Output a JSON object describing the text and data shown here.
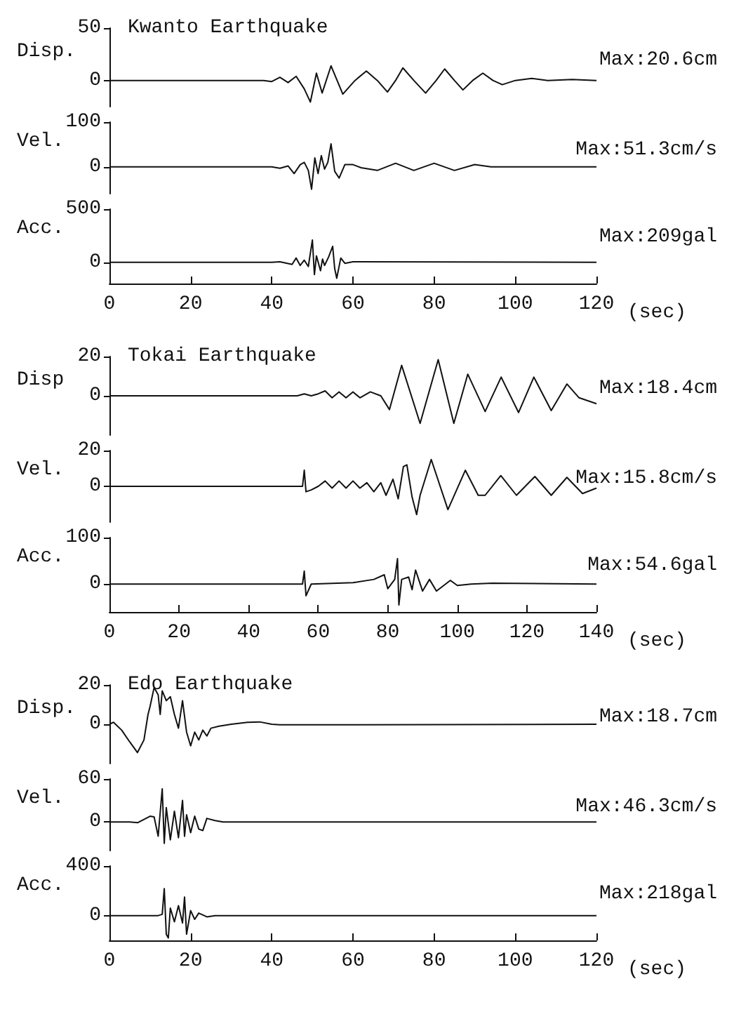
{
  "chart_data": [
    {
      "type": "line",
      "title": "Kwanto Earthquake",
      "ylabel": "Disp.",
      "annotations": [
        "Max:20.6cm"
      ],
      "tick_labels": "y",
      "xlim": [
        0,
        120
      ],
      "ylim": [
        -25,
        50
      ],
      "yticks": [
        0,
        50
      ],
      "x": [
        0,
        38,
        40,
        42,
        44,
        46,
        48,
        49.5,
        51,
        52.4,
        54.6,
        57.5,
        60.5,
        63.3,
        66,
        68.5,
        70.5,
        72.3,
        75,
        77.9,
        80.5,
        82.6,
        85,
        87.1,
        89.5,
        92,
        94.5,
        96.8,
        100,
        104,
        108,
        114,
        120
      ],
      "series": [
        {
          "color": "#111111",
          "values": [
            0,
            0,
            -1,
            3,
            -2,
            4,
            -8,
            -20.6,
            7,
            -12,
            14,
            -13,
            0,
            9,
            0,
            -11,
            0,
            12,
            0,
            -12,
            0,
            11,
            0,
            -9,
            0,
            7,
            0,
            -4,
            0,
            2,
            0,
            1,
            0
          ]
        }
      ]
    },
    {
      "type": "line",
      "ylabel": "Vel.",
      "annotations": [
        "Max:51.3cm/s"
      ],
      "tick_labels": "y",
      "xlim": [
        0,
        120
      ],
      "ylim": [
        -60,
        100
      ],
      "yticks": [
        0,
        100
      ],
      "x": [
        0,
        40,
        42,
        44,
        45.5,
        47,
        48,
        49,
        49.8,
        50.6,
        51.4,
        52.2,
        53,
        53.8,
        54.6,
        55.5,
        56.6,
        58,
        60,
        62,
        66,
        70.5,
        75,
        80,
        85,
        90,
        94,
        120
      ],
      "series": [
        {
          "color": "#111111",
          "values": [
            0,
            0,
            -3,
            2,
            -15,
            5,
            10,
            -8,
            -50,
            20,
            -15,
            25,
            -5,
            10,
            51.3,
            -10,
            -25,
            5,
            5,
            -2,
            -8,
            8,
            -8,
            8,
            -8,
            5,
            0,
            0
          ]
        }
      ]
    },
    {
      "type": "line",
      "ylabel": "Acc.",
      "xlabel": "(sec)",
      "annotations": [
        "Max:209gal"
      ],
      "xlim": [
        0,
        120
      ],
      "xticks": [
        0,
        20,
        40,
        60,
        80,
        100,
        120
      ],
      "ylim": [
        -200,
        500
      ],
      "yticks": [
        0,
        500
      ],
      "x": [
        0,
        40,
        42,
        45,
        46,
        47,
        48,
        49,
        50,
        50.5,
        51,
        52,
        52.5,
        53,
        54,
        55,
        55.5,
        56,
        57,
        58,
        60,
        120
      ],
      "series": [
        {
          "color": "#111111",
          "values": [
            0,
            0,
            5,
            -20,
            40,
            -30,
            20,
            -40,
            209,
            -115,
            60,
            -80,
            30,
            -30,
            50,
            150,
            -60,
            -150,
            40,
            -10,
            5,
            0
          ]
        }
      ]
    },
    {
      "type": "line",
      "title": "Tokai Earthquake",
      "ylabel": "Disp",
      "annotations": [
        "Max:18.4cm"
      ],
      "tick_labels": "y",
      "xlim": [
        0,
        140
      ],
      "ylim": [
        -20,
        20
      ],
      "yticks": [
        0,
        20
      ],
      "x": [
        0,
        54,
        56,
        58,
        60,
        62,
        64,
        66,
        68,
        70,
        72,
        75,
        78,
        80.5,
        84,
        89.3,
        94.5,
        99,
        103,
        108,
        112.6,
        117.6,
        122,
        127,
        131.5,
        135,
        140
      ],
      "series": [
        {
          "color": "#111111",
          "values": [
            0,
            0,
            1,
            0,
            1,
            2.5,
            -1,
            2,
            -1,
            2,
            -1,
            2,
            0,
            -7,
            15.5,
            -14,
            18.4,
            -14,
            11,
            -8,
            9.5,
            -8.5,
            9.5,
            -7.5,
            6,
            -1,
            -4
          ]
        }
      ]
    },
    {
      "type": "line",
      "ylabel": "Vel.",
      "annotations": [
        "Max:15.8cm/s"
      ],
      "tick_labels": "y",
      "xlim": [
        0,
        140
      ],
      "ylim": [
        -20,
        20
      ],
      "yticks": [
        0,
        20
      ],
      "x": [
        0,
        55.5,
        56,
        56.5,
        58,
        60,
        62,
        64,
        66,
        68,
        70,
        72,
        74,
        76,
        78,
        79.5,
        81.5,
        83,
        84.5,
        85.5,
        87,
        88.3,
        89.3,
        92.5,
        97.3,
        102.3,
        106,
        108,
        112.5,
        117,
        122.3,
        127,
        131.5,
        136,
        140
      ],
      "series": [
        {
          "color": "#111111",
          "values": [
            0,
            0,
            9,
            -3,
            -2,
            0,
            3,
            -1,
            3,
            -1,
            3,
            -1,
            2,
            -3,
            2,
            -5,
            4,
            -7,
            11,
            12,
            -6,
            -15.8,
            -5,
            15,
            -13,
            9,
            -5,
            -5,
            6,
            -5,
            5.5,
            -5,
            5,
            -4,
            -1
          ]
        }
      ]
    },
    {
      "type": "line",
      "ylabel": "Acc.",
      "xlabel": "(sec)",
      "annotations": [
        "Max:54.6gal"
      ],
      "xlim": [
        0,
        140
      ],
      "xticks": [
        0,
        20,
        40,
        60,
        80,
        100,
        120,
        140
      ],
      "ylim": [
        -60,
        100
      ],
      "yticks": [
        0,
        100
      ],
      "x": [
        0,
        55.5,
        56,
        56.5,
        58,
        70,
        76,
        79,
        80,
        82,
        82.8,
        83.2,
        84,
        86,
        87,
        88,
        90,
        92,
        94,
        98,
        100,
        104,
        110,
        140
      ],
      "series": [
        {
          "color": "#111111",
          "values": [
            0,
            0,
            28,
            -25,
            0,
            3,
            10,
            20,
            -10,
            10,
            54.6,
            -45,
            10,
            15,
            -12,
            30,
            -15,
            10,
            -15,
            8,
            -3,
            0,
            2,
            0
          ]
        }
      ]
    },
    {
      "type": "line",
      "title": "Edo Earthquake",
      "ylabel": "Disp.",
      "annotations": [
        "Max:18.7cm"
      ],
      "tick_labels": "y",
      "xlim": [
        0,
        120
      ],
      "ylim": [
        -20,
        20
      ],
      "yticks": [
        0,
        20
      ],
      "x": [
        0,
        1,
        3,
        5,
        6.9,
        8.5,
        9.5,
        10,
        11,
        12,
        12.5,
        13,
        14,
        15,
        16,
        17,
        18,
        19,
        20,
        21,
        22,
        23,
        24,
        25,
        27,
        30,
        34,
        37,
        40,
        42,
        120
      ],
      "series": [
        {
          "color": "#111111",
          "values": [
            0,
            1,
            -3,
            -9,
            -14.4,
            -8,
            5,
            9,
            18.7,
            15,
            5,
            17,
            12,
            14,
            5,
            -2,
            12,
            -4,
            -11,
            -4,
            -8,
            -3,
            -6,
            -2,
            -1,
            0,
            1,
            1.2,
            0,
            -0.3,
            0
          ]
        }
      ]
    },
    {
      "type": "line",
      "ylabel": "Vel.",
      "annotations": [
        "Max:46.3cm/s"
      ],
      "tick_labels": "y",
      "xlim": [
        0,
        120
      ],
      "ylim": [
        -40,
        60
      ],
      "yticks": [
        0,
        60
      ],
      "x": [
        0,
        5,
        7,
        8,
        9,
        10,
        11,
        12,
        13,
        13.5,
        14,
        15,
        16,
        17,
        18,
        18.5,
        19,
        20,
        21,
        22,
        23,
        24,
        26,
        28,
        120
      ],
      "series": [
        {
          "color": "#111111",
          "values": [
            0,
            0,
            -1,
            2,
            5,
            8,
            7,
            -20,
            46.3,
            -30,
            20,
            -25,
            15,
            -22,
            30,
            -20,
            10,
            -15,
            8,
            -10,
            -12,
            5,
            2,
            0,
            0
          ]
        }
      ]
    },
    {
      "type": "line",
      "ylabel": "Acc.",
      "xlabel": "(sec)",
      "annotations": [
        "Max:218gal"
      ],
      "xlim": [
        0,
        120
      ],
      "xticks": [
        0,
        20,
        40,
        60,
        80,
        100,
        120
      ],
      "ylim": [
        -200,
        400
      ],
      "yticks": [
        0,
        400
      ],
      "x": [
        0,
        12,
        13,
        13.5,
        14,
        14.5,
        15,
        16,
        17,
        18,
        18.5,
        19,
        20,
        21,
        22,
        24,
        26,
        120
      ],
      "series": [
        {
          "color": "#111111",
          "values": [
            0,
            0,
            10,
            218,
            -150,
            -180,
            60,
            -50,
            80,
            -60,
            150,
            -150,
            40,
            -30,
            20,
            -10,
            0,
            0
          ]
        }
      ]
    }
  ]
}
